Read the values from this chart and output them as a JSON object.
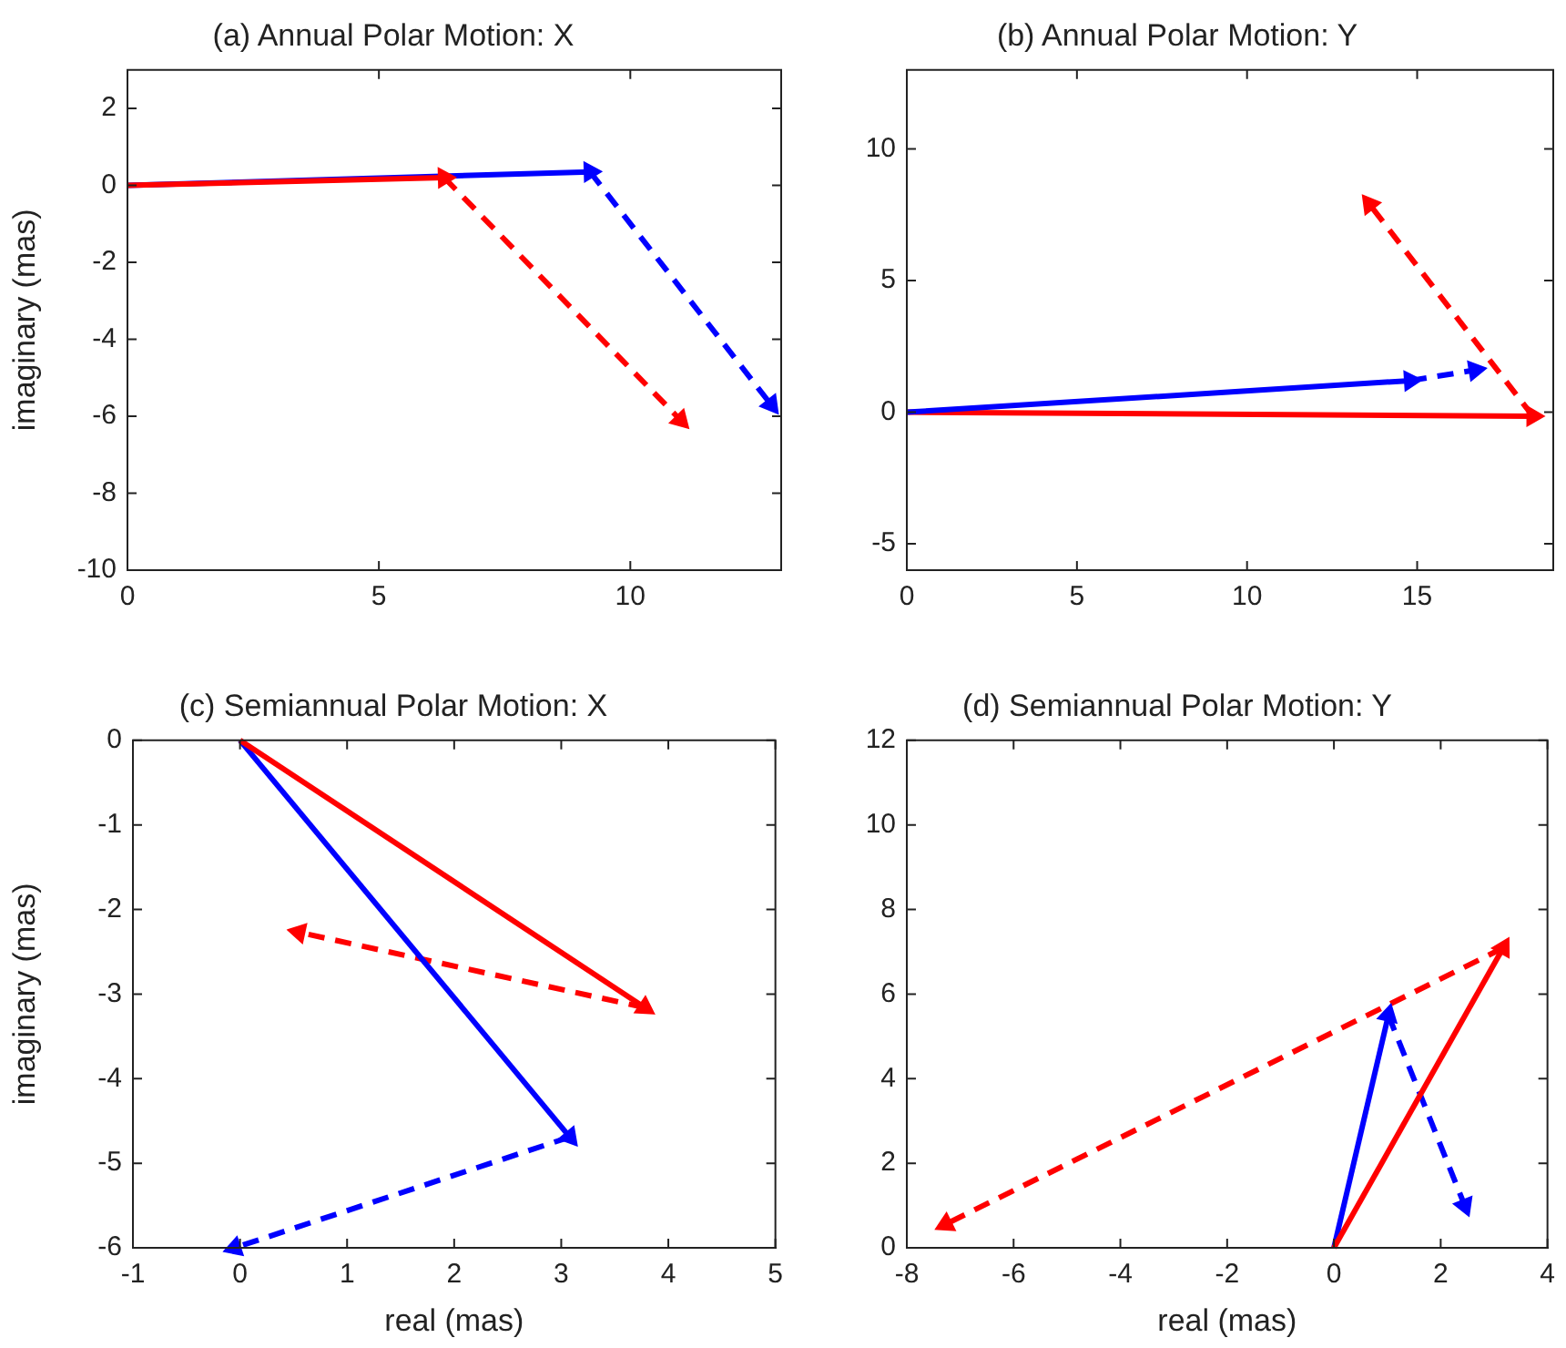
{
  "chart_data": [
    {
      "type": "line",
      "title": "(a) Annual Polar Motion: X",
      "ylabel": "imaginary (mas)",
      "xlim": [
        0,
        13
      ],
      "ylim": [
        -10,
        3
      ],
      "xticks": [
        0,
        5,
        10
      ],
      "yticks": [
        -10,
        -8,
        -6,
        -4,
        -2,
        0,
        2
      ],
      "series": [
        {
          "color": "#ff0000",
          "line_style": "solid",
          "x": [
            0,
            6.3
          ],
          "values": [
            0,
            0.2
          ]
        },
        {
          "color": "#0000ff",
          "line_style": "solid",
          "x": [
            0,
            9.2
          ],
          "values": [
            0,
            0.35
          ]
        },
        {
          "color": "#ff0000",
          "line_style": "dashed",
          "x": [
            6.3,
            11
          ],
          "values": [
            0.2,
            -6.1
          ]
        },
        {
          "color": "#0000ff",
          "line_style": "dashed",
          "x": [
            9.2,
            12.8
          ],
          "values": [
            0.35,
            -5.7
          ]
        }
      ]
    },
    {
      "type": "line",
      "title": "(b) Annual Polar Motion: Y",
      "xlim": [
        0,
        19
      ],
      "ylim": [
        -6,
        13
      ],
      "xticks": [
        0,
        5,
        10,
        15
      ],
      "yticks": [
        -5,
        0,
        5,
        10
      ],
      "series": [
        {
          "color": "#0000ff",
          "line_style": "solid",
          "x": [
            0,
            14.8
          ],
          "values": [
            0,
            1.2
          ]
        },
        {
          "color": "#ff0000",
          "line_style": "solid",
          "x": [
            0,
            18.4
          ],
          "values": [
            0,
            -0.15
          ]
        },
        {
          "color": "#0000ff",
          "line_style": "dashed",
          "x": [
            14.8,
            16.7
          ],
          "values": [
            1.2,
            1.6
          ]
        },
        {
          "color": "#ff0000",
          "line_style": "dashed",
          "x": [
            18.4,
            13.6
          ],
          "values": [
            -0.15,
            7.9
          ]
        }
      ]
    },
    {
      "type": "line",
      "title": "(c) Semiannual Polar Motion: X",
      "xlabel": "real (mas)",
      "ylabel": "imaginary (mas)",
      "xlim": [
        -1,
        5
      ],
      "ylim": [
        -6,
        0
      ],
      "xticks": [
        -1,
        0,
        1,
        2,
        3,
        4,
        5
      ],
      "yticks": [
        -6,
        -5,
        -4,
        -3,
        -2,
        -1,
        0
      ],
      "series": [
        {
          "color": "#ff0000",
          "line_style": "solid",
          "x": [
            0,
            3.78
          ],
          "values": [
            0,
            -3.16
          ]
        },
        {
          "color": "#0000ff",
          "line_style": "solid",
          "x": [
            0,
            3.08
          ],
          "values": [
            0,
            -4.69
          ]
        },
        {
          "color": "#ff0000",
          "line_style": "dashed",
          "x": [
            3.78,
            0.55
          ],
          "values": [
            -3.16,
            -2.27
          ]
        },
        {
          "color": "#0000ff",
          "line_style": "dashed",
          "x": [
            3.08,
            -0.05
          ],
          "values": [
            -4.69,
            -6
          ]
        }
      ]
    },
    {
      "type": "line",
      "title": "(d) Semiannual Polar Motion: Y",
      "xlabel": "real (mas)",
      "xlim": [
        -8,
        4
      ],
      "ylim": [
        0,
        12
      ],
      "xticks": [
        -8,
        -6,
        -4,
        -2,
        0,
        2,
        4
      ],
      "yticks": [
        0,
        2,
        4,
        6,
        8,
        10,
        12
      ],
      "series": [
        {
          "color": "#ff0000",
          "line_style": "solid",
          "x": [
            0,
            3.17
          ],
          "values": [
            0,
            7.09
          ]
        },
        {
          "color": "#0000ff",
          "line_style": "solid",
          "x": [
            0,
            1.02
          ],
          "values": [
            0,
            5.5
          ]
        },
        {
          "color": "#ff0000",
          "line_style": "dashed",
          "x": [
            3.17,
            -7.27
          ],
          "values": [
            7.09,
            0.56
          ]
        },
        {
          "color": "#0000ff",
          "line_style": "dashed",
          "x": [
            1.02,
            2.45
          ],
          "values": [
            5.5,
            1.0
          ]
        }
      ]
    }
  ]
}
